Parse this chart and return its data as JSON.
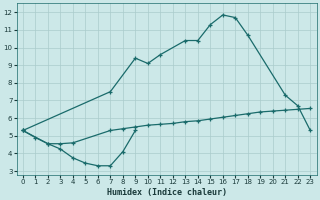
{
  "bg_color": "#cce8e8",
  "grid_color": "#aacccc",
  "line_color": "#1a6b6b",
  "xlabel": "Humidex (Indice chaleur)",
  "xlim": [
    -0.5,
    23.5
  ],
  "ylim": [
    2.8,
    12.5
  ],
  "yticks": [
    3,
    4,
    5,
    6,
    7,
    8,
    9,
    10,
    11,
    12
  ],
  "xticks": [
    0,
    1,
    2,
    3,
    4,
    5,
    6,
    7,
    8,
    9,
    10,
    11,
    12,
    13,
    14,
    15,
    16,
    17,
    18,
    19,
    20,
    21,
    22,
    23
  ],
  "upper_x": [
    0,
    7,
    9,
    10,
    11,
    13,
    14,
    15,
    16,
    17,
    18,
    21,
    22,
    23
  ],
  "upper_y": [
    5.3,
    7.5,
    9.4,
    9.1,
    9.6,
    10.4,
    10.4,
    11.3,
    11.85,
    11.7,
    10.7,
    7.3,
    6.7,
    5.3
  ],
  "lower_x": [
    0,
    1,
    2,
    3,
    4,
    5,
    6,
    7,
    8,
    9
  ],
  "lower_y": [
    5.3,
    4.9,
    4.55,
    4.25,
    3.75,
    3.45,
    3.3,
    3.3,
    4.1,
    5.3
  ],
  "diag_x": [
    0,
    2,
    3,
    4,
    7,
    8,
    9,
    10,
    11,
    12,
    13,
    14,
    15,
    16,
    17,
    18,
    19,
    20,
    21,
    22,
    23
  ],
  "diag_y": [
    5.3,
    4.55,
    4.55,
    4.6,
    5.3,
    5.4,
    5.5,
    5.6,
    5.65,
    5.7,
    5.8,
    5.85,
    5.95,
    6.05,
    6.15,
    6.25,
    6.35,
    6.4,
    6.45,
    6.5,
    6.55
  ],
  "line_width": 0.9,
  "marker_size": 3.5,
  "marker_ew": 0.9
}
